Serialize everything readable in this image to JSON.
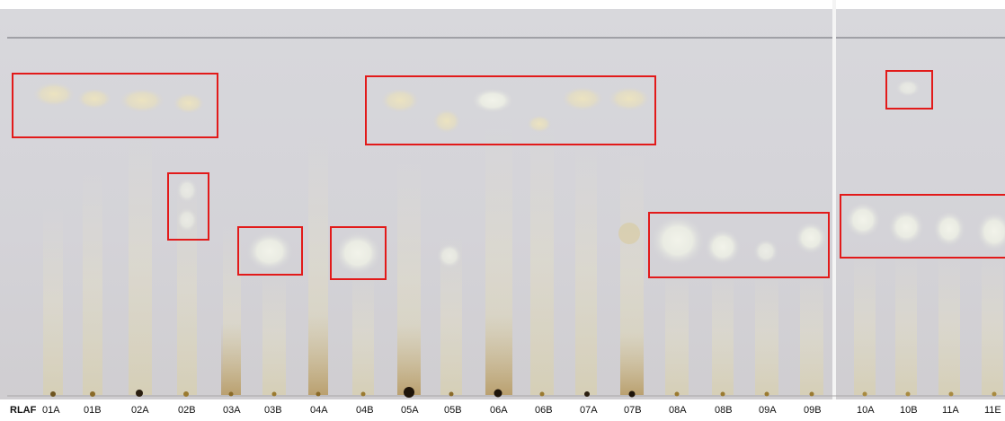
{
  "plate": {
    "background_color": "#d6d6da",
    "lane_labels": [
      "RLAF",
      "01A",
      "01B",
      "02A",
      "02B",
      "03A",
      "03B",
      "04A",
      "04B",
      "05A",
      "05B",
      "06A",
      "06B",
      "07A",
      "07B",
      "08A",
      "08B",
      "09A",
      "09B",
      "10A",
      "10B",
      "11A",
      "11E"
    ],
    "highlight_color": "#e21a1a",
    "highlighted_regions_count": 8
  }
}
